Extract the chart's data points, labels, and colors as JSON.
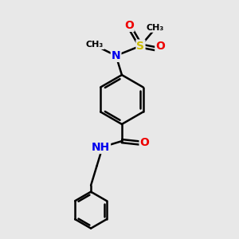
{
  "bg_color": "#e8e8e8",
  "atom_colors": {
    "C": "#000000",
    "N": "#0000ee",
    "O": "#ee0000",
    "S": "#ccbb00",
    "H": "#000000"
  },
  "bond_color": "#000000",
  "bond_width": 1.8,
  "font_size_atom": 10,
  "fig_width": 3.0,
  "fig_height": 3.0,
  "dpi": 100,
  "xlim": [
    0,
    10
  ],
  "ylim": [
    0,
    10
  ]
}
